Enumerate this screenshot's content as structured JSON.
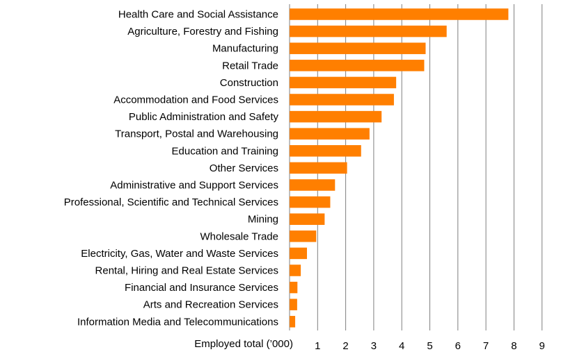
{
  "chart_data": {
    "type": "bar",
    "orientation": "horizontal",
    "title": "",
    "xlabel": "Employed total (’000)",
    "ylabel": "",
    "xlim": [
      0,
      9
    ],
    "xticks": [
      1,
      2,
      3,
      4,
      5,
      6,
      7,
      8,
      9
    ],
    "grid": "vertical",
    "legend": "none",
    "bar_color": "#ff7f00",
    "categories": [
      "Health Care and Social Assistance",
      "Agriculture, Forestry and Fishing",
      "Manufacturing",
      "Retail Trade",
      "Construction",
      "Accommodation and Food Services",
      "Public Administration and Safety",
      "Transport, Postal and Warehousing",
      "Education and Training",
      "Other Services",
      "Administrative and Support Services",
      "Professional, Scientific and Technical Services",
      "Mining",
      "Wholesale Trade",
      "Electricity, Gas, Water and Waste Services",
      "Rental, Hiring and Real Estate Services",
      "Financial and Insurance Services",
      "Arts and Recreation Services",
      "Information Media and Telecommunications"
    ],
    "values": [
      7.8,
      5.6,
      4.85,
      4.8,
      3.8,
      3.72,
      3.28,
      2.85,
      2.55,
      2.05,
      1.62,
      1.45,
      1.25,
      0.95,
      0.62,
      0.4,
      0.28,
      0.27,
      0.2
    ]
  }
}
